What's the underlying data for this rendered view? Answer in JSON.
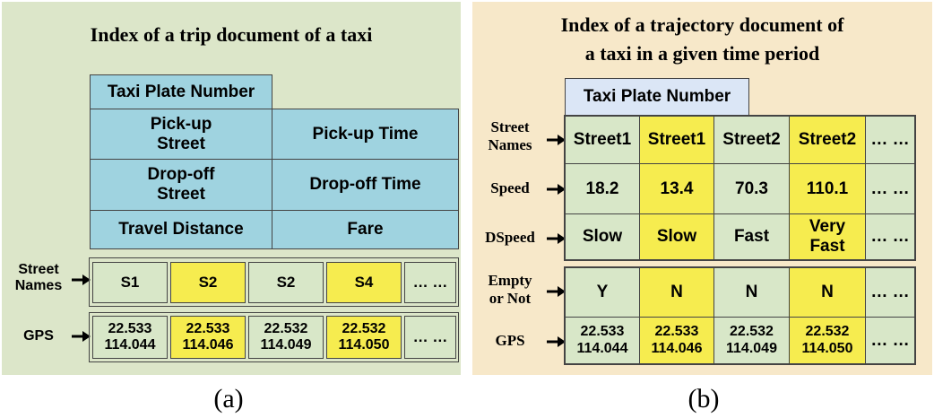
{
  "panel_a": {
    "title": "Index of a trip document  of a taxi",
    "plate": "Taxi Plate Number",
    "pickup_street": "Pick-up\nStreet",
    "pickup_time": "Pick-up Time",
    "dropoff_street": "Drop-off\nStreet",
    "dropoff_time": "Drop-off Time",
    "travel_distance": "Travel Distance",
    "fare": "Fare",
    "street_names_label": "Street\nNames",
    "gps_label": "GPS",
    "street_cells": [
      "S1",
      "S2",
      "S2",
      "S4",
      "… …"
    ],
    "gps_cells": [
      "22.533\n114.044",
      "22.533\n114.046",
      "22.532\n114.049",
      "22.532\n114.050",
      "… …"
    ],
    "highlight_color": "#f6ec4f",
    "cell_color": "#d8e7c8",
    "header_color": "#9fd3e0"
  },
  "panel_b": {
    "title": "Index of a trajectory document of\na taxi in a given time period",
    "plate": "Taxi Plate Number",
    "row_labels": [
      "Street\nNames",
      "Speed",
      "DSpeed",
      "Empty\nor Not",
      "GPS"
    ],
    "rows": [
      [
        "Street1",
        "Street1",
        "Street2",
        "Street2",
        "… …"
      ],
      [
        "18.2",
        "13.4",
        "70.3",
        "110.1",
        "… …"
      ],
      [
        "Slow",
        "Slow",
        "Fast",
        "Very\nFast",
        "… …"
      ],
      [
        "Y",
        "N",
        "N",
        "N",
        "… …"
      ],
      [
        "22.533\n114.044",
        "22.533\n114.046",
        "22.532\n114.049",
        "22.532\n114.050",
        "… …"
      ]
    ]
  },
  "captions": [
    "(a)",
    "(b)"
  ]
}
